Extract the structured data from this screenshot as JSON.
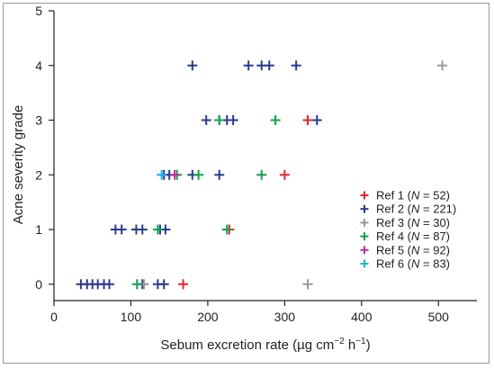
{
  "chart_data": {
    "type": "scatter",
    "title": "",
    "xlabel": "Sebum excretion rate (µg cm",
    "xlabel_sup1": "−2",
    "xlabel_mid": " h",
    "xlabel_sup2": "−1",
    "xlabel_end": ")",
    "ylabel": "Acne severity grade",
    "xlim": [
      0,
      550
    ],
    "ylim": [
      -0.3,
      5
    ],
    "xticks": [
      0,
      100,
      200,
      300,
      400,
      500
    ],
    "yticks": [
      0,
      1,
      2,
      3,
      4,
      5
    ],
    "marker": "plus",
    "grid": false,
    "legend_position": "right",
    "series": [
      {
        "name": "Ref 1",
        "n_label": "N",
        "n_value": "52",
        "color": "#e8262b",
        "points": [
          [
            168,
            0
          ],
          [
            228,
            1
          ],
          [
            300,
            2
          ],
          [
            330,
            3
          ]
        ]
      },
      {
        "name": "Ref 2",
        "n_label": "N",
        "n_value": "221",
        "color": "#2b3a8c",
        "points": [
          [
            35,
            0
          ],
          [
            43,
            0
          ],
          [
            50,
            0
          ],
          [
            57,
            0
          ],
          [
            65,
            0
          ],
          [
            72,
            0
          ],
          [
            115,
            0
          ],
          [
            135,
            0
          ],
          [
            143,
            0
          ],
          [
            80,
            1
          ],
          [
            88,
            1
          ],
          [
            107,
            1
          ],
          [
            115,
            1
          ],
          [
            138,
            1
          ],
          [
            145,
            1
          ],
          [
            143,
            2
          ],
          [
            150,
            2
          ],
          [
            180,
            2
          ],
          [
            215,
            2
          ],
          [
            198,
            3
          ],
          [
            215,
            3
          ],
          [
            225,
            3
          ],
          [
            233,
            3
          ],
          [
            342,
            3
          ],
          [
            180,
            4
          ],
          [
            253,
            4
          ],
          [
            270,
            4
          ],
          [
            280,
            4
          ],
          [
            315,
            4
          ]
        ]
      },
      {
        "name": "Ref 3",
        "n_label": "N",
        "n_value": "30",
        "color": "#9a9a9a",
        "points": [
          [
            117,
            0
          ],
          [
            330,
            0
          ],
          [
            505,
            4
          ]
        ]
      },
      {
        "name": "Ref 4",
        "n_label": "N",
        "n_value": "87",
        "color": "#11a14a",
        "points": [
          [
            108,
            0
          ],
          [
            135,
            1
          ],
          [
            225,
            1
          ],
          [
            160,
            2
          ],
          [
            188,
            2
          ],
          [
            270,
            2
          ],
          [
            215,
            3
          ],
          [
            288,
            3
          ]
        ]
      },
      {
        "name": "Ref 5",
        "n_label": "N",
        "n_value": "92",
        "color": "#c52a9e",
        "points": [
          [
            157,
            2
          ]
        ]
      },
      {
        "name": "Ref 6",
        "n_label": "N",
        "n_value": "83",
        "color": "#1cb0e8",
        "points": [
          [
            140,
            2
          ]
        ]
      }
    ]
  }
}
